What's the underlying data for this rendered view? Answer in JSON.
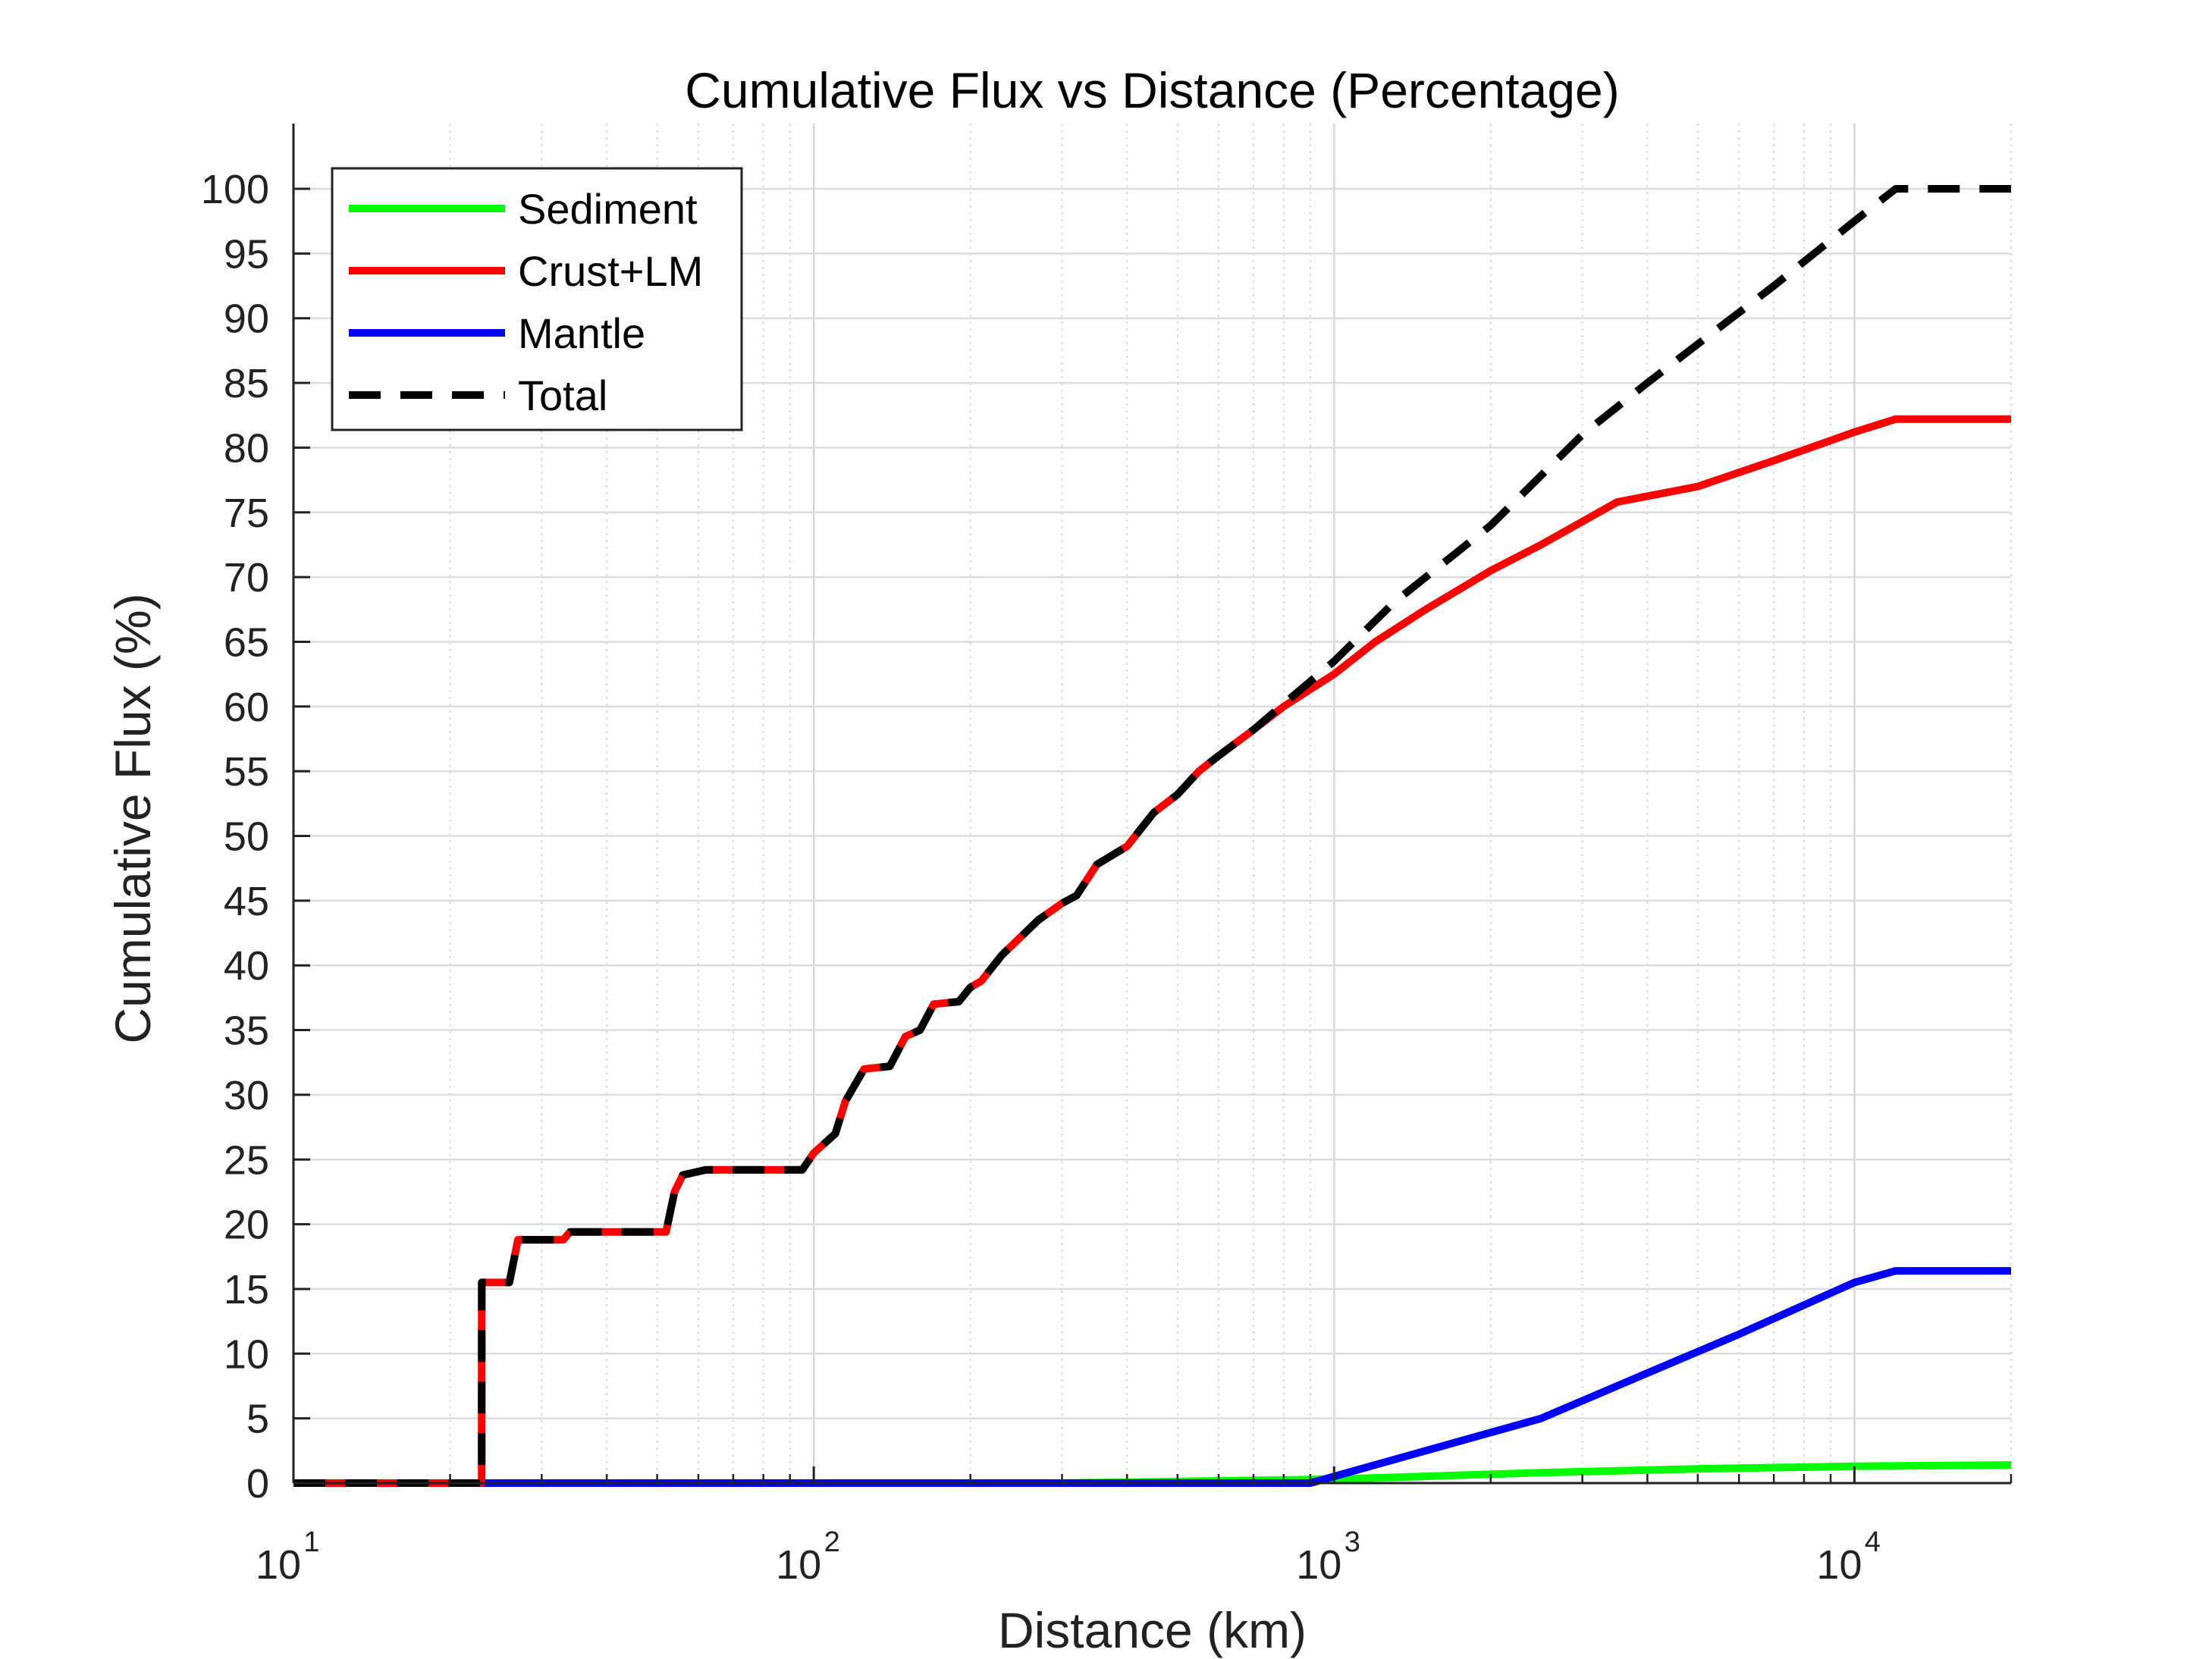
{
  "chart_data": {
    "type": "line",
    "title": "Cumulative Flux vs Distance (Percentage)",
    "xlabel": "Distance (km)",
    "ylabel": "Cumulative Flux (%)",
    "xscale": "log",
    "xlim": [
      10,
      20000
    ],
    "ylim": [
      0,
      105
    ],
    "x_tick_labels": [
      {
        "value": 10,
        "base": "10",
        "exp": "1"
      },
      {
        "value": 100,
        "base": "10",
        "exp": "2"
      },
      {
        "value": 1000,
        "base": "10",
        "exp": "3"
      },
      {
        "value": 10000,
        "base": "10",
        "exp": "4"
      }
    ],
    "y_ticks": [
      0,
      5,
      10,
      15,
      20,
      25,
      30,
      35,
      40,
      45,
      50,
      55,
      60,
      65,
      70,
      75,
      80,
      85,
      90,
      95,
      100
    ],
    "grid": true,
    "legend_position": "top-left",
    "series": [
      {
        "name": "Sediment",
        "color": "#00ff00",
        "dash": "solid",
        "points": [
          [
            10,
            0
          ],
          [
            300,
            0
          ],
          [
            1000,
            0.3
          ],
          [
            2500,
            0.8
          ],
          [
            5000,
            1.1
          ],
          [
            10000,
            1.3
          ],
          [
            20000,
            1.4
          ]
        ]
      },
      {
        "name": "Crust+LM",
        "color": "#ff0000",
        "dash": "solid",
        "points": [
          [
            10,
            0
          ],
          [
            23,
            0
          ],
          [
            23.01,
            15.5
          ],
          [
            26,
            15.5
          ],
          [
            27,
            18.8
          ],
          [
            33,
            18.8
          ],
          [
            34,
            19.4
          ],
          [
            52,
            19.4
          ],
          [
            54,
            22.5
          ],
          [
            56,
            23.8
          ],
          [
            62,
            24.2
          ],
          [
            95,
            24.2
          ],
          [
            100,
            25.5
          ],
          [
            110,
            27
          ],
          [
            115,
            29.5
          ],
          [
            125,
            32
          ],
          [
            140,
            32.2
          ],
          [
            150,
            34.5
          ],
          [
            160,
            35
          ],
          [
            170,
            37
          ],
          [
            190,
            37.2
          ],
          [
            200,
            38.3
          ],
          [
            210,
            38.8
          ],
          [
            230,
            40.8
          ],
          [
            250,
            42.2
          ],
          [
            270,
            43.5
          ],
          [
            300,
            44.8
          ],
          [
            320,
            45.4
          ],
          [
            350,
            47.8
          ],
          [
            400,
            49.2
          ],
          [
            450,
            51.8
          ],
          [
            500,
            53.2
          ],
          [
            550,
            55
          ],
          [
            600,
            56.2
          ],
          [
            700,
            58.2
          ],
          [
            800,
            60
          ],
          [
            1000,
            62.5
          ],
          [
            1200,
            65
          ],
          [
            1500,
            67.5
          ],
          [
            2000,
            70.5
          ],
          [
            2500,
            72.5
          ],
          [
            3500,
            75.8
          ],
          [
            5000,
            77
          ],
          [
            7000,
            79
          ],
          [
            10000,
            81.2
          ],
          [
            12000,
            82.2
          ],
          [
            20000,
            82.2
          ]
        ]
      },
      {
        "name": "Mantle",
        "color": "#0000ff",
        "dash": "solid",
        "points": [
          [
            10,
            0
          ],
          [
            900,
            0
          ],
          [
            1500,
            2.5
          ],
          [
            2500,
            5
          ],
          [
            4000,
            8.5
          ],
          [
            6000,
            11.5
          ],
          [
            10000,
            15.5
          ],
          [
            12000,
            16.4
          ],
          [
            20000,
            16.4
          ]
        ]
      },
      {
        "name": "Total",
        "color": "#000000",
        "dash": "dashed",
        "points": [
          [
            10,
            0
          ],
          [
            23,
            0
          ],
          [
            23.01,
            15.5
          ],
          [
            26,
            15.5
          ],
          [
            27,
            18.8
          ],
          [
            33,
            18.8
          ],
          [
            34,
            19.4
          ],
          [
            52,
            19.4
          ],
          [
            54,
            22.5
          ],
          [
            56,
            23.8
          ],
          [
            62,
            24.2
          ],
          [
            95,
            24.2
          ],
          [
            100,
            25.5
          ],
          [
            110,
            27
          ],
          [
            115,
            29.5
          ],
          [
            125,
            32
          ],
          [
            140,
            32.2
          ],
          [
            150,
            34.5
          ],
          [
            160,
            35
          ],
          [
            170,
            37
          ],
          [
            190,
            37.2
          ],
          [
            200,
            38.3
          ],
          [
            210,
            38.8
          ],
          [
            230,
            40.8
          ],
          [
            250,
            42.2
          ],
          [
            270,
            43.5
          ],
          [
            300,
            44.8
          ],
          [
            320,
            45.4
          ],
          [
            350,
            47.8
          ],
          [
            400,
            49.2
          ],
          [
            450,
            51.8
          ],
          [
            500,
            53.2
          ],
          [
            550,
            55
          ],
          [
            600,
            56.2
          ],
          [
            700,
            58.2
          ],
          [
            800,
            60.2
          ],
          [
            1000,
            63.5
          ],
          [
            1300,
            68
          ],
          [
            2000,
            74
          ],
          [
            3000,
            81
          ],
          [
            4000,
            85
          ],
          [
            5000,
            88
          ],
          [
            7000,
            92.5
          ],
          [
            10000,
            97.5
          ],
          [
            12000,
            100
          ],
          [
            20000,
            100
          ]
        ]
      }
    ]
  }
}
